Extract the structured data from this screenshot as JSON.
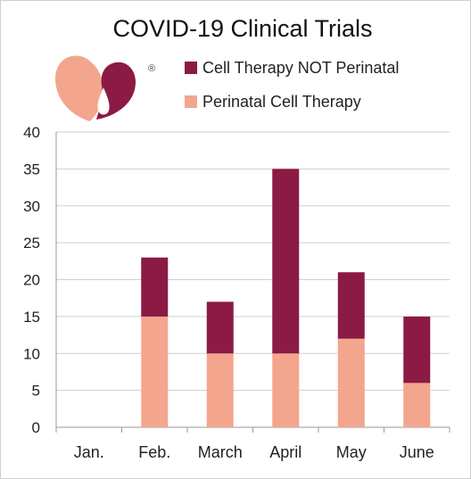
{
  "chart_data": {
    "type": "bar",
    "stacked": true,
    "title": "COVID-19  Clinical Trials",
    "xlabel": "",
    "ylabel": "",
    "categories": [
      "Jan.",
      "Feb.",
      "March",
      "April",
      "May",
      "June"
    ],
    "series": [
      {
        "name": "Perinatal Cell Therapy",
        "color": "#f4a58e",
        "values": [
          0,
          15,
          10,
          10,
          12,
          6
        ]
      },
      {
        "name": "Cell Therapy NOT Perinatal",
        "color": "#8b1a44",
        "values": [
          0,
          8,
          7,
          25,
          9,
          9
        ]
      }
    ],
    "legend_order": [
      1,
      0
    ],
    "legend_position": "top-right",
    "ylim": [
      0,
      40
    ],
    "yticks": [
      0,
      5,
      10,
      15,
      20,
      25,
      30,
      35,
      40
    ],
    "grid": true
  },
  "logo": {
    "name": "heart-logo",
    "mark": "®",
    "colors": [
      "#f4a58e",
      "#8b1a44"
    ]
  }
}
